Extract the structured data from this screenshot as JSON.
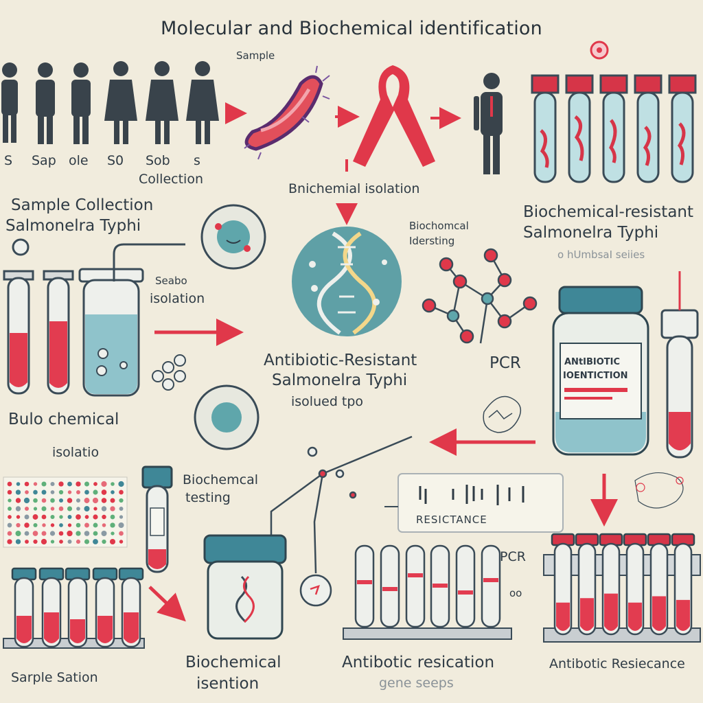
{
  "title": "Molecular and Biochemical identification",
  "labels": {
    "sample_top": "Sample",
    "people_codes": [
      "S",
      "Sap",
      "ole",
      "S0",
      "Sob",
      "s"
    ],
    "collection_small": "Collection",
    "sample_collection": "Sample   Collection",
    "salmonella_left": "Salmonelra Typhi",
    "bnichemical_isolation": "Bnichemial isolation",
    "biochemical_resistant": "Biochemical-resistant",
    "salmonella_right": "Salmonelra Typhi",
    "humbat_series": "o hUmbsaI seiies",
    "biochemical_identing_1": "Biochomcal",
    "biochemical_identing_2": "Idersting",
    "seabo_isolation_1": "Seabo",
    "seabo_isolation_2": "isolation",
    "antibiotic_resistant_1": "Antibiotic-Resistant",
    "antibiotic_resistant_2": "Salmonelra Typhi",
    "antibiotic_resistant_3": "isolued tpo",
    "pcr_mid": "PCR",
    "jar_label_1": "ANtIBIOTIC",
    "jar_label_2": "IOENTICTION",
    "bulo_chemical": "Bulo chemical",
    "isolatio": "isolatio",
    "biochemical_testing_1": "Biochemcal",
    "biochemical_testing_2": "testing",
    "resistance": "RESICTANCE",
    "pcr_bottom": "PCR",
    "sample_sation": "Sarple Sation",
    "biochemical_isention_1": "Biochemical",
    "biochemical_isention_2": "isention",
    "antibiotic_resication_1": "Antibotic resication",
    "antibiotic_resication_2": "gene seeps",
    "antibiotic_resiecance": "Antibotic Resiecance",
    "dot_dot": "oo"
  },
  "colors": {
    "background": "#f1ecdd",
    "accent_red": "#e0384a",
    "teal": "#3f8797",
    "liquid_teal": "#8fc3cb",
    "blood_red": "#e23c50",
    "outline": "#3a4b57"
  }
}
